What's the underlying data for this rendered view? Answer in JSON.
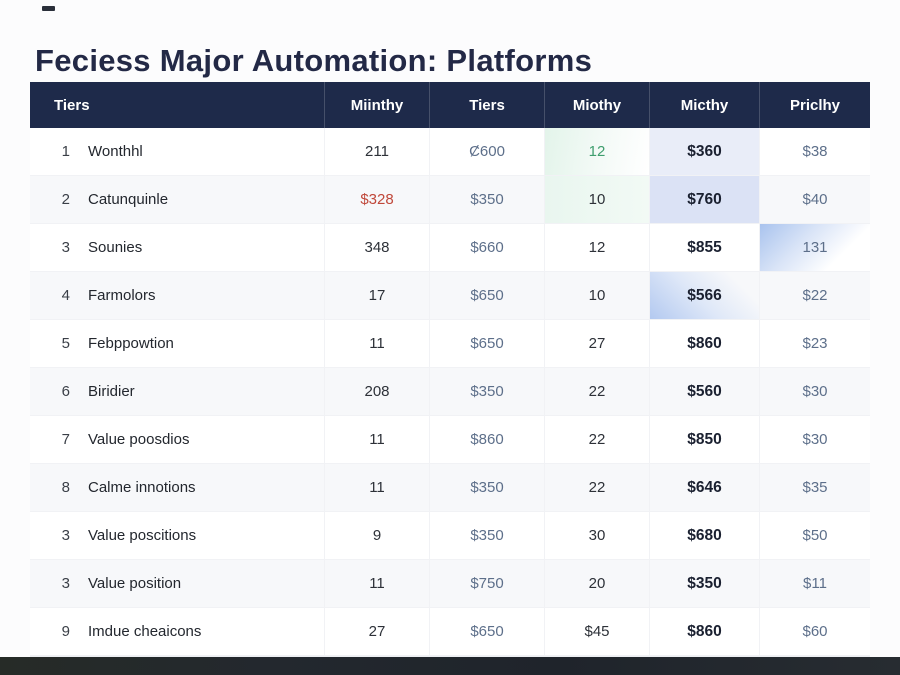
{
  "title": "Feciess Major Automation: Platforms",
  "table": {
    "columns": [
      {
        "label": "Tiers"
      },
      {
        "label": "Miinthy"
      },
      {
        "label": "Tiers"
      },
      {
        "label": "Miothy"
      },
      {
        "label": "Micthy"
      },
      {
        "label": "Priclhy"
      }
    ],
    "rows": [
      {
        "num": "1",
        "name": "Wonthhl",
        "cells": [
          {
            "t": "211",
            "s": ""
          },
          {
            "t": "Ȼ600",
            "s": "s-slate"
          },
          {
            "t": "12",
            "s": "s-green bg-green-1"
          },
          {
            "t": "$360",
            "s": "s-bold bg-blue-1"
          },
          {
            "t": "$38",
            "s": "s-slate"
          }
        ]
      },
      {
        "num": "2",
        "name": "Catunquinle",
        "cells": [
          {
            "t": "$328",
            "s": "s-red"
          },
          {
            "t": "$350",
            "s": "s-slate"
          },
          {
            "t": "10",
            "s": "bg-green-2"
          },
          {
            "t": "$760",
            "s": "s-bold bg-blue-2"
          },
          {
            "t": "$40",
            "s": "s-slate"
          }
        ]
      },
      {
        "num": "3",
        "name": "Sounies",
        "cells": [
          {
            "t": "348",
            "s": ""
          },
          {
            "t": "$660",
            "s": "s-slate"
          },
          {
            "t": "12",
            "s": ""
          },
          {
            "t": "$855",
            "s": "s-bold"
          },
          {
            "t": "131",
            "s": "s-slate bg-grad-tl"
          }
        ]
      },
      {
        "num": "4",
        "name": "Farmolors",
        "cells": [
          {
            "t": "17",
            "s": ""
          },
          {
            "t": "$650",
            "s": "s-slate"
          },
          {
            "t": "10",
            "s": ""
          },
          {
            "t": "$566",
            "s": "s-bold bg-grad-bl"
          },
          {
            "t": "$22",
            "s": "s-slate"
          }
        ]
      },
      {
        "num": "5",
        "name": "Febppowtion",
        "cells": [
          {
            "t": "11",
            "s": ""
          },
          {
            "t": "$650",
            "s": "s-slate"
          },
          {
            "t": "27",
            "s": ""
          },
          {
            "t": "$860",
            "s": "s-bold"
          },
          {
            "t": "$23",
            "s": "s-slate"
          }
        ]
      },
      {
        "num": "6",
        "name": "Biridier",
        "cells": [
          {
            "t": "208",
            "s": ""
          },
          {
            "t": "$350",
            "s": "s-slate"
          },
          {
            "t": "22",
            "s": ""
          },
          {
            "t": "$560",
            "s": "s-bold"
          },
          {
            "t": "$30",
            "s": "s-slate"
          }
        ]
      },
      {
        "num": "7",
        "name": "Value poosdios",
        "cells": [
          {
            "t": "11",
            "s": ""
          },
          {
            "t": "$860",
            "s": "s-slate"
          },
          {
            "t": "22",
            "s": ""
          },
          {
            "t": "$850",
            "s": "s-bold"
          },
          {
            "t": "$30",
            "s": "s-slate"
          }
        ]
      },
      {
        "num": "8",
        "name": "Calme innotions",
        "cells": [
          {
            "t": "11",
            "s": ""
          },
          {
            "t": "$350",
            "s": "s-slate"
          },
          {
            "t": "22",
            "s": ""
          },
          {
            "t": "$646",
            "s": "s-bold"
          },
          {
            "t": "$35",
            "s": "s-slate"
          }
        ]
      },
      {
        "num": "3",
        "name": "Value poscitions",
        "cells": [
          {
            "t": "9",
            "s": ""
          },
          {
            "t": "$350",
            "s": "s-slate"
          },
          {
            "t": "30",
            "s": ""
          },
          {
            "t": "$680",
            "s": "s-bold"
          },
          {
            "t": "$50",
            "s": "s-slate"
          }
        ]
      },
      {
        "num": "3",
        "name": "Value position",
        "cells": [
          {
            "t": "11",
            "s": ""
          },
          {
            "t": "$750",
            "s": "s-slate"
          },
          {
            "t": "20",
            "s": ""
          },
          {
            "t": "$350",
            "s": "s-bold"
          },
          {
            "t": "$11",
            "s": "s-slate"
          }
        ]
      },
      {
        "num": "9",
        "name": "Imdue cheaicons",
        "cells": [
          {
            "t": "27",
            "s": ""
          },
          {
            "t": "$650",
            "s": "s-slate"
          },
          {
            "t": "$45",
            "s": ""
          },
          {
            "t": "$860",
            "s": "s-bold"
          },
          {
            "t": "$60",
            "s": "s-slate"
          }
        ]
      }
    ]
  },
  "colors": {
    "header_bg": "#1e2a4a",
    "title_text": "#232946",
    "body_text": "#2d3138",
    "slate_text": "#5d6f8a",
    "red_text": "#c0483a",
    "green_text": "#3f9e6e",
    "green_highlight": "#e3f4ea",
    "blue_highlight_light": "#e9edf8",
    "blue_highlight_medium": "#dbe2f5",
    "blue_gradient": "#a9c3ee",
    "zebra_row": "#f7f8fa",
    "footer_bar": "#23282e"
  },
  "chart_data": {
    "type": "table",
    "title": "Feciess Major Automation: Platforms",
    "columns": [
      "Tiers",
      "Miinthy",
      "Tiers",
      "Miothy",
      "Micthy",
      "Priclhy"
    ],
    "rows": [
      [
        "1 Wonthhl",
        "211",
        "Ȼ600",
        "12",
        "$360",
        "$38"
      ],
      [
        "2 Catunquinle",
        "$328",
        "$350",
        "10",
        "$760",
        "$40"
      ],
      [
        "3 Sounies",
        "348",
        "$660",
        "12",
        "$855",
        "131"
      ],
      [
        "4 Farmolors",
        "17",
        "$650",
        "10",
        "$566",
        "$22"
      ],
      [
        "5 Febppowtion",
        "11",
        "$650",
        "27",
        "$860",
        "$23"
      ],
      [
        "6 Biridier",
        "208",
        "$350",
        "22",
        "$560",
        "$30"
      ],
      [
        "7 Value poosdios",
        "11",
        "$860",
        "22",
        "$850",
        "$30"
      ],
      [
        "8 Calme innotions",
        "11",
        "$350",
        "22",
        "$646",
        "$35"
      ],
      [
        "3 Value poscitions",
        "9",
        "$350",
        "30",
        "$680",
        "$50"
      ],
      [
        "3 Value position",
        "11",
        "$750",
        "20",
        "$350",
        "$11"
      ],
      [
        "9 Imdue cheaicons",
        "27",
        "$650",
        "$45",
        "$860",
        "$60"
      ]
    ]
  }
}
